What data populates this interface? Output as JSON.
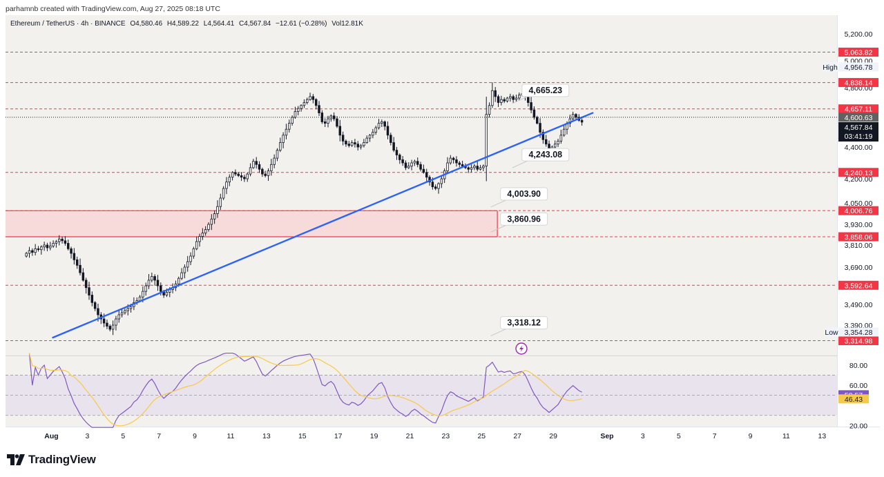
{
  "header": {
    "credit": "parhamnb created with TradingView.com, Aug 27, 2025 08:18 UTC"
  },
  "legend": {
    "symbol": "Ethereum / TetherUS · 4h · BINANCE",
    "open": "O4,580.46",
    "high": "H4,589.22",
    "low": "L4,564.41",
    "close": "C4,567.84",
    "change": "−12.61 (−0.28%)",
    "volume": "Vol12.81K"
  },
  "footer": {
    "logo_text": "TradingView"
  },
  "colors": {
    "background": "#f3f1ee",
    "candle_up": "#ffffff",
    "candle_down": "#131722",
    "level_red": "#f23645",
    "zone_fill": "#f8d3d3",
    "trendline": "#2962ff",
    "rsi": "#7e57c2",
    "rsi_ma": "#f7c948",
    "rsi_band": "#e6e1ec"
  },
  "chart_data": {
    "type": "candlestick",
    "symbol": "ETHUSDT",
    "timeframe": "4h",
    "price_axis": {
      "ticks": [
        5200,
        5000,
        4800,
        4600,
        4400,
        4200,
        4050,
        3930,
        3810,
        3690,
        3490,
        3390
      ],
      "tick_labels": [
        "5,200.00",
        "5,000.00",
        "4,800.00",
        "4,600.00",
        "4,400.00",
        "4,200.00",
        "4,050.00",
        "3,930.00",
        "3,810.00",
        "3,690.00",
        "3,490.00",
        "3,390.00"
      ]
    },
    "date_axis": {
      "ticks": [
        {
          "label": "Aug",
          "day": 1,
          "bold": true
        },
        {
          "label": "3",
          "day": 3
        },
        {
          "label": "5",
          "day": 5
        },
        {
          "label": "7",
          "day": 7
        },
        {
          "label": "9",
          "day": 9
        },
        {
          "label": "11",
          "day": 11
        },
        {
          "label": "13",
          "day": 13
        },
        {
          "label": "15",
          "day": 15
        },
        {
          "label": "17",
          "day": 17
        },
        {
          "label": "19",
          "day": 19
        },
        {
          "label": "21",
          "day": 21
        },
        {
          "label": "23",
          "day": 23
        },
        {
          "label": "25",
          "day": 25
        },
        {
          "label": "27",
          "day": 27
        },
        {
          "label": "29",
          "day": 29
        },
        {
          "label": "Sep",
          "day": 32,
          "bold": true
        },
        {
          "label": "3",
          "day": 34
        },
        {
          "label": "5",
          "day": 36
        },
        {
          "label": "7",
          "day": 38
        },
        {
          "label": "9",
          "day": 40
        },
        {
          "label": "11",
          "day": 42
        },
        {
          "label": "13",
          "day": 44
        }
      ]
    },
    "levels": [
      {
        "price": 5063.82,
        "label": "5,063.82"
      },
      {
        "price": 4838.14,
        "label": "4,838.14"
      },
      {
        "price": 4657.11,
        "label": "4,657.11"
      },
      {
        "price": 4240.13,
        "label": "4,240.13"
      },
      {
        "price": 4006.76,
        "label": "4,006.76"
      },
      {
        "price": 3858.06,
        "label": "3,858.06"
      },
      {
        "price": 3592.64,
        "label": "3,592.64"
      },
      {
        "price": 3314.98,
        "label": "3,314.98"
      }
    ],
    "current_price": {
      "value": 4567.84,
      "label": "4,567.84",
      "countdown": "03:41:19"
    },
    "dotted_price": {
      "value": 4600.63,
      "label": "4,600.63"
    },
    "high_marker": {
      "label": "High",
      "value": "4,956.78"
    },
    "low_marker": {
      "label": "Low",
      "value": "3,354.28"
    },
    "zone": {
      "top": 4006.76,
      "bottom": 3858.06,
      "end_day": 25.88
    },
    "trendline": {
      "from": {
        "day": 1.08,
        "price": 3330
      },
      "to": {
        "day": 31.2,
        "price": 4630
      }
    },
    "annotations": [
      {
        "text": "4,665.23",
        "day": 27.1,
        "price": 4665.23
      },
      {
        "text": "4,243.08",
        "day": 27.1,
        "price": 4243.08
      },
      {
        "text": "4,003.90",
        "day": 25.9,
        "price": 4003.9
      },
      {
        "text": "3,860.96",
        "day": 25.9,
        "price": 3860.96
      },
      {
        "text": "3,318.12",
        "day": 25.9,
        "price": 3318.12
      }
    ],
    "candles_start_day": -0.4,
    "candles_per_day": 6,
    "closes": [
      3765,
      3780,
      3770,
      3790,
      3785,
      3800,
      3810,
      3795,
      3805,
      3820,
      3830,
      3845,
      3835,
      3820,
      3790,
      3765,
      3730,
      3700,
      3660,
      3620,
      3580,
      3540,
      3500,
      3470,
      3440,
      3420,
      3400,
      3385,
      3370,
      3390,
      3420,
      3440,
      3450,
      3460,
      3470,
      3480,
      3500,
      3510,
      3530,
      3560,
      3590,
      3620,
      3640,
      3620,
      3590,
      3560,
      3540,
      3555,
      3570,
      3580,
      3600,
      3630,
      3660,
      3690,
      3720,
      3750,
      3790,
      3830,
      3860,
      3880,
      3900,
      3930,
      3960,
      3990,
      4030,
      4080,
      4140,
      4180,
      4210,
      4240,
      4230,
      4220,
      4210,
      4200,
      4230,
      4270,
      4310,
      4290,
      4260,
      4230,
      4220,
      4250,
      4290,
      4330,
      4380,
      4430,
      4480,
      4520,
      4560,
      4600,
      4640,
      4660,
      4680,
      4700,
      4720,
      4740,
      4720,
      4680,
      4630,
      4570,
      4560,
      4590,
      4610,
      4590,
      4540,
      4480,
      4440,
      4420,
      4410,
      4430,
      4420,
      4400,
      4410,
      4430,
      4460,
      4480,
      4500,
      4530,
      4560,
      4570,
      4540,
      4480,
      4430,
      4380,
      4350,
      4320,
      4300,
      4270,
      4280,
      4300,
      4310,
      4290,
      4260,
      4240,
      4210,
      4180,
      4150,
      4140,
      4170,
      4200,
      4250,
      4300,
      4330,
      4320,
      4300,
      4290,
      4280,
      4270,
      4260,
      4270,
      4280,
      4260,
      4270,
      4280,
      4620,
      4680,
      4780,
      4740,
      4700,
      4720,
      4710,
      4730,
      4740,
      4720,
      4730,
      4750,
      4760,
      4740,
      4700,
      4650,
      4600,
      4560,
      4500,
      4450,
      4420,
      4380,
      4400,
      4420,
      4440,
      4480,
      4520,
      4560,
      4590,
      4620,
      4600,
      4580,
      4567.84
    ],
    "rsi": {
      "levels": [
        80,
        60,
        20
      ],
      "upper_band": 70,
      "lower_band": 30,
      "value": {
        "value": 50.57,
        "label": "50.57"
      },
      "ma": {
        "value": 46.43,
        "label": "46.43"
      },
      "tick_labels": [
        "80.00",
        "60.00",
        "20.00"
      ]
    }
  }
}
